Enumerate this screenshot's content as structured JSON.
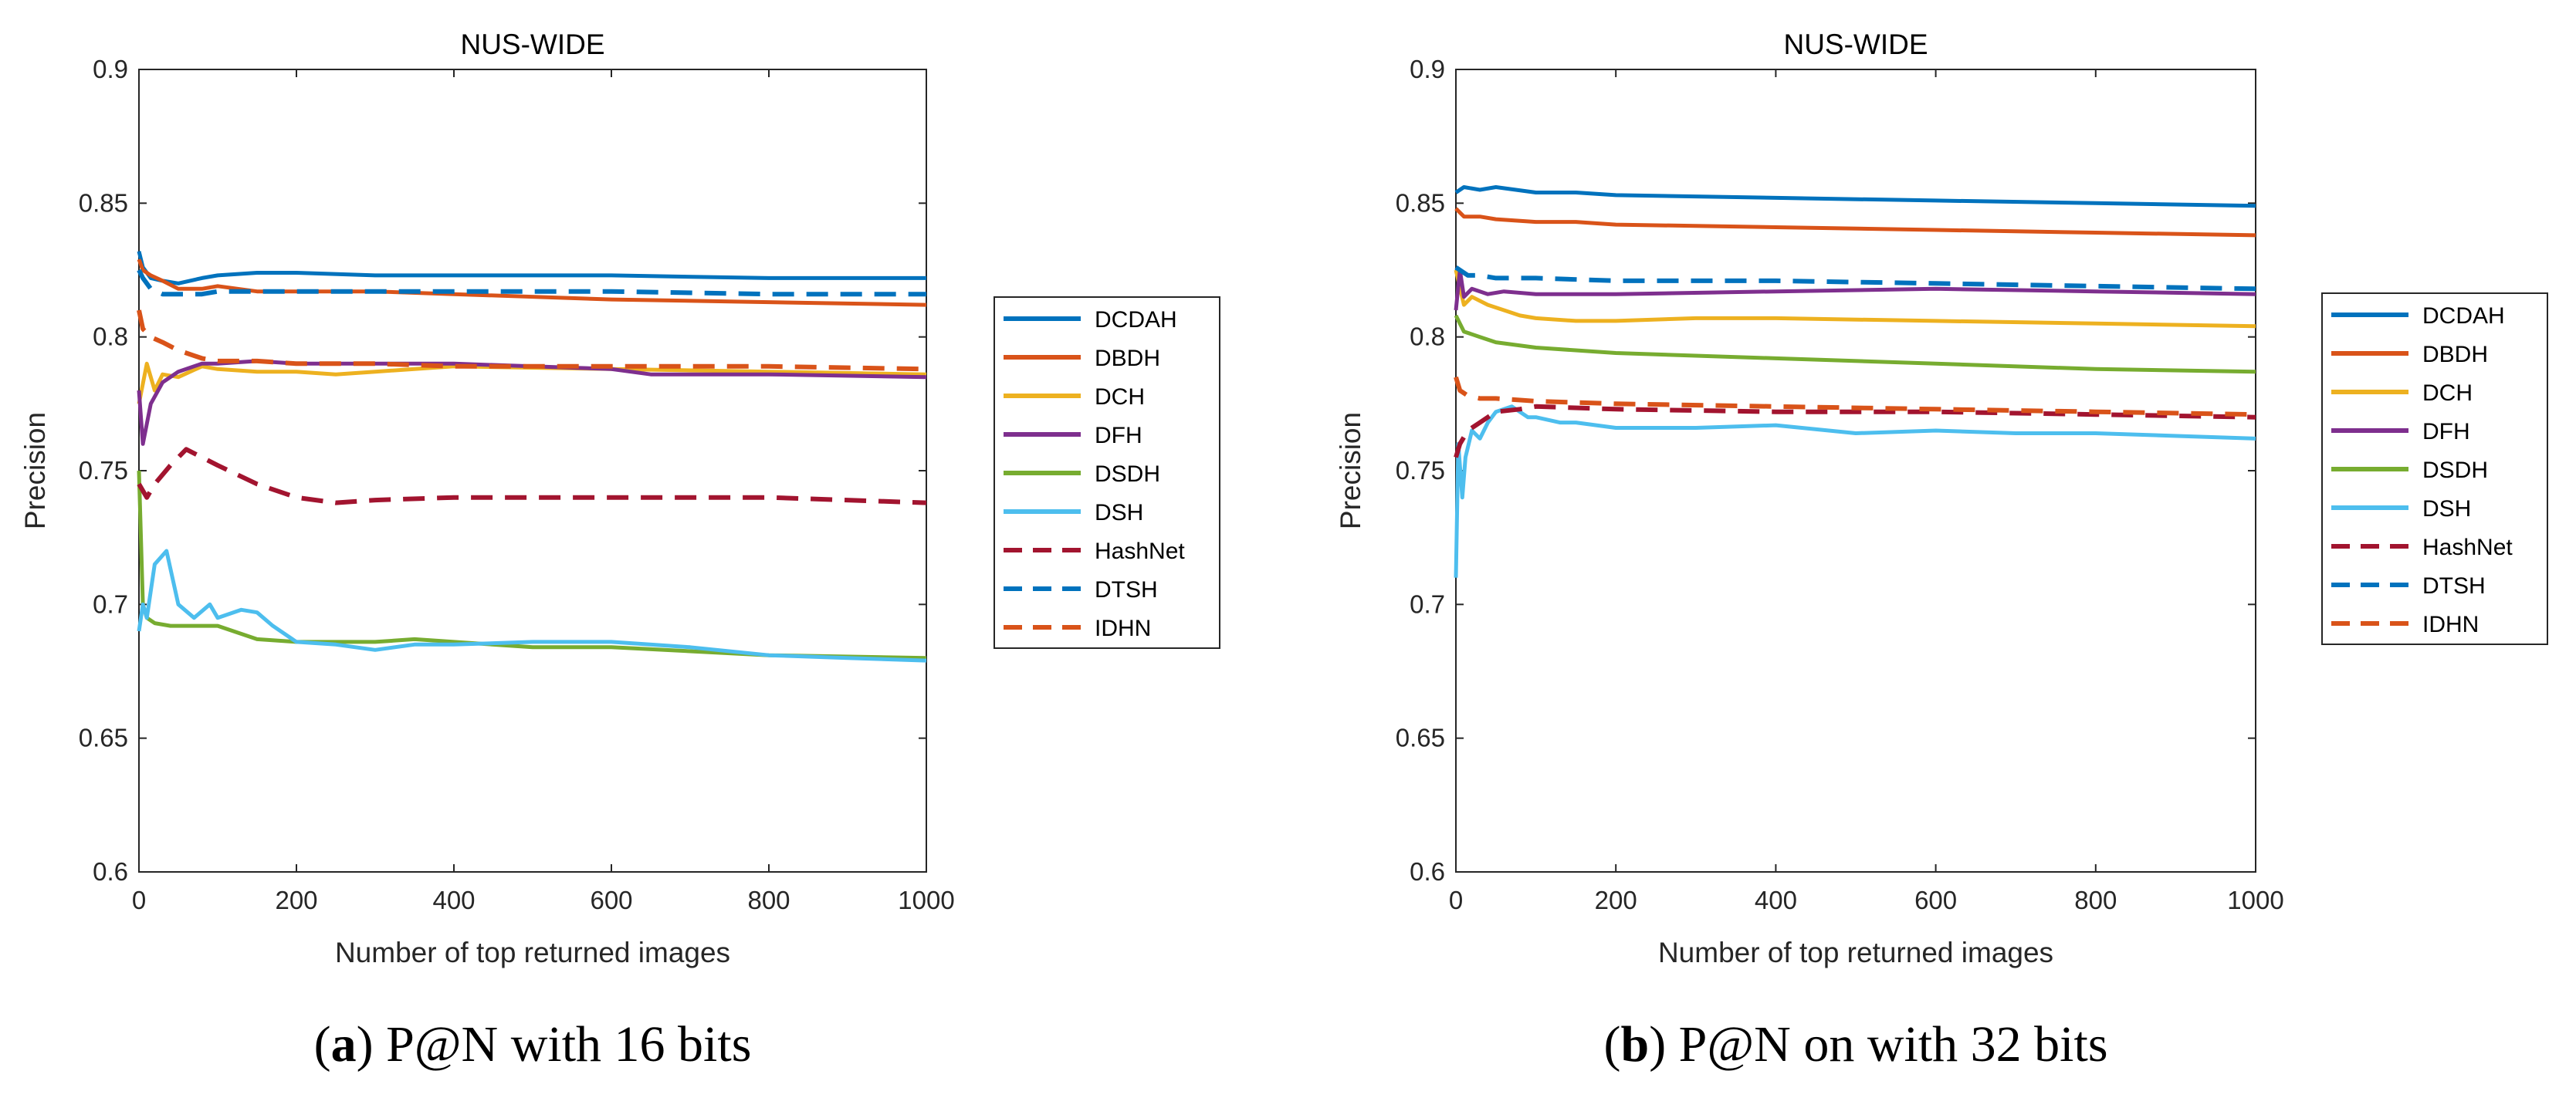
{
  "colors": {
    "DCDAH": "#0072BD",
    "DBDH": "#D95319",
    "DCH": "#EDB120",
    "DFH": "#7E2F8E",
    "DSDH": "#77AC30",
    "DSH": "#4DBEEE",
    "HashNet": "#A2142F",
    "DTSH": "#0072BD",
    "IDHN": "#D95319"
  },
  "chart_data": [
    {
      "type": "line",
      "title": "NUS-WIDE",
      "xlabel": "Number of top returned images",
      "ylabel": "Precision",
      "xlim": [
        0,
        1000
      ],
      "ylim": [
        0.6,
        0.9
      ],
      "xticks": [
        "0",
        "200",
        "400",
        "600",
        "800",
        "1000"
      ],
      "yticks": [
        "0.6",
        "0.65",
        "0.7",
        "0.75",
        "0.8",
        "0.85",
        "0.9"
      ],
      "caption_label": "a",
      "caption_text": "P@N with 16 bits",
      "series": [
        {
          "name": "DCDAH",
          "style": "solid",
          "x": [
            0,
            5,
            15,
            30,
            50,
            80,
            100,
            150,
            200,
            300,
            400,
            600,
            800,
            1000
          ],
          "y": [
            0.832,
            0.826,
            0.822,
            0.821,
            0.82,
            0.822,
            0.823,
            0.824,
            0.824,
            0.823,
            0.823,
            0.823,
            0.822,
            0.822
          ]
        },
        {
          "name": "DBDH",
          "style": "solid",
          "x": [
            0,
            5,
            15,
            30,
            50,
            80,
            100,
            150,
            200,
            300,
            400,
            600,
            800,
            1000
          ],
          "y": [
            0.829,
            0.825,
            0.823,
            0.821,
            0.818,
            0.818,
            0.819,
            0.817,
            0.817,
            0.817,
            0.816,
            0.814,
            0.813,
            0.812
          ]
        },
        {
          "name": "DCH",
          "style": "solid",
          "x": [
            0,
            10,
            20,
            30,
            50,
            80,
            100,
            150,
            200,
            250,
            300,
            400,
            600,
            800,
            1000
          ],
          "y": [
            0.775,
            0.79,
            0.78,
            0.786,
            0.785,
            0.789,
            0.788,
            0.787,
            0.787,
            0.786,
            0.787,
            0.789,
            0.788,
            0.787,
            0.786
          ]
        },
        {
          "name": "DFH",
          "style": "solid",
          "x": [
            0,
            5,
            15,
            30,
            50,
            80,
            100,
            150,
            200,
            300,
            400,
            600,
            650,
            800,
            1000
          ],
          "y": [
            0.78,
            0.76,
            0.775,
            0.783,
            0.787,
            0.79,
            0.79,
            0.791,
            0.79,
            0.79,
            0.79,
            0.788,
            0.786,
            0.786,
            0.785
          ]
        },
        {
          "name": "DSDH",
          "style": "solid",
          "x": [
            0,
            5,
            10,
            20,
            40,
            80,
            100,
            150,
            200,
            300,
            350,
            500,
            600,
            800,
            1000
          ],
          "y": [
            0.75,
            0.7,
            0.695,
            0.693,
            0.692,
            0.692,
            0.692,
            0.687,
            0.686,
            0.686,
            0.687,
            0.684,
            0.684,
            0.681,
            0.68
          ]
        },
        {
          "name": "DSH",
          "style": "solid",
          "x": [
            0,
            5,
            10,
            20,
            35,
            50,
            70,
            90,
            100,
            130,
            150,
            170,
            200,
            250,
            300,
            350,
            400,
            500,
            600,
            700,
            800,
            900,
            1000
          ],
          "y": [
            0.69,
            0.7,
            0.695,
            0.715,
            0.72,
            0.7,
            0.695,
            0.7,
            0.695,
            0.698,
            0.697,
            0.692,
            0.686,
            0.685,
            0.683,
            0.685,
            0.685,
            0.686,
            0.686,
            0.684,
            0.681,
            0.68,
            0.679
          ]
        },
        {
          "name": "HashNet",
          "style": "dashed",
          "x": [
            0,
            10,
            20,
            40,
            60,
            80,
            100,
            150,
            200,
            250,
            300,
            400,
            600,
            800,
            1000
          ],
          "y": [
            0.745,
            0.74,
            0.745,
            0.752,
            0.758,
            0.755,
            0.752,
            0.745,
            0.74,
            0.738,
            0.739,
            0.74,
            0.74,
            0.74,
            0.738
          ]
        },
        {
          "name": "DTSH",
          "style": "dashed",
          "x": [
            0,
            5,
            15,
            30,
            50,
            80,
            100,
            150,
            200,
            300,
            400,
            600,
            800,
            1000
          ],
          "y": [
            0.825,
            0.822,
            0.818,
            0.816,
            0.816,
            0.816,
            0.817,
            0.817,
            0.817,
            0.817,
            0.817,
            0.817,
            0.816,
            0.816
          ]
        },
        {
          "name": "IDHN",
          "style": "dashed",
          "x": [
            0,
            5,
            15,
            30,
            50,
            80,
            100,
            150,
            200,
            300,
            400,
            600,
            800,
            1000
          ],
          "y": [
            0.81,
            0.803,
            0.8,
            0.798,
            0.795,
            0.792,
            0.791,
            0.791,
            0.79,
            0.79,
            0.789,
            0.789,
            0.789,
            0.788
          ]
        }
      ]
    },
    {
      "type": "line",
      "title": "NUS-WIDE",
      "xlabel": "Number of top returned images",
      "ylabel": "Precision",
      "xlim": [
        0,
        1000
      ],
      "ylim": [
        0.6,
        0.9
      ],
      "xticks": [
        "0",
        "200",
        "400",
        "600",
        "800",
        "1000"
      ],
      "yticks": [
        "0.6",
        "0.65",
        "0.7",
        "0.75",
        "0.8",
        "0.85",
        "0.9"
      ],
      "caption_label": "b",
      "caption_text": "P@N on with 32 bits",
      "series": [
        {
          "name": "DCDAH",
          "style": "solid",
          "x": [
            0,
            10,
            30,
            50,
            100,
            150,
            200,
            400,
            600,
            800,
            1000
          ],
          "y": [
            0.854,
            0.856,
            0.855,
            0.856,
            0.854,
            0.854,
            0.853,
            0.852,
            0.851,
            0.85,
            0.849
          ]
        },
        {
          "name": "DBDH",
          "style": "solid",
          "x": [
            0,
            10,
            30,
            50,
            100,
            150,
            200,
            400,
            600,
            800,
            1000
          ],
          "y": [
            0.848,
            0.845,
            0.845,
            0.844,
            0.843,
            0.843,
            0.842,
            0.841,
            0.84,
            0.839,
            0.838
          ]
        },
        {
          "name": "DCH",
          "style": "solid",
          "x": [
            0,
            10,
            20,
            40,
            60,
            80,
            100,
            150,
            200,
            300,
            400,
            600,
            800,
            1000
          ],
          "y": [
            0.825,
            0.812,
            0.815,
            0.812,
            0.81,
            0.808,
            0.807,
            0.806,
            0.806,
            0.807,
            0.807,
            0.806,
            0.805,
            0.804
          ]
        },
        {
          "name": "DFH",
          "style": "solid",
          "x": [
            0,
            5,
            10,
            20,
            40,
            60,
            100,
            150,
            200,
            400,
            600,
            800,
            1000
          ],
          "y": [
            0.81,
            0.825,
            0.815,
            0.818,
            0.816,
            0.817,
            0.816,
            0.816,
            0.816,
            0.817,
            0.818,
            0.817,
            0.816
          ]
        },
        {
          "name": "DSDH",
          "style": "solid",
          "x": [
            0,
            10,
            30,
            50,
            100,
            150,
            200,
            400,
            600,
            800,
            1000
          ],
          "y": [
            0.808,
            0.802,
            0.8,
            0.798,
            0.796,
            0.795,
            0.794,
            0.792,
            0.79,
            0.788,
            0.787
          ]
        },
        {
          "name": "DSH",
          "style": "solid",
          "x": [
            0,
            3,
            8,
            12,
            20,
            30,
            40,
            50,
            70,
            90,
            100,
            130,
            150,
            200,
            300,
            400,
            500,
            600,
            700,
            800,
            1000
          ],
          "y": [
            0.71,
            0.76,
            0.74,
            0.755,
            0.765,
            0.762,
            0.768,
            0.772,
            0.774,
            0.77,
            0.77,
            0.768,
            0.768,
            0.766,
            0.766,
            0.767,
            0.764,
            0.765,
            0.764,
            0.764,
            0.762
          ]
        },
        {
          "name": "HashNet",
          "style": "dashed",
          "x": [
            0,
            5,
            15,
            30,
            50,
            80,
            100,
            200,
            400,
            600,
            800,
            1000
          ],
          "y": [
            0.755,
            0.76,
            0.765,
            0.768,
            0.772,
            0.773,
            0.774,
            0.773,
            0.772,
            0.772,
            0.771,
            0.77
          ]
        },
        {
          "name": "DTSH",
          "style": "dashed",
          "x": [
            0,
            5,
            15,
            30,
            50,
            100,
            200,
            400,
            600,
            800,
            1000
          ],
          "y": [
            0.826,
            0.825,
            0.823,
            0.823,
            0.822,
            0.822,
            0.821,
            0.821,
            0.82,
            0.819,
            0.818
          ]
        },
        {
          "name": "IDHN",
          "style": "dashed",
          "x": [
            0,
            5,
            15,
            30,
            50,
            100,
            200,
            400,
            600,
            800,
            1000
          ],
          "y": [
            0.785,
            0.78,
            0.778,
            0.777,
            0.777,
            0.776,
            0.775,
            0.774,
            0.773,
            0.772,
            0.771
          ]
        }
      ]
    }
  ]
}
